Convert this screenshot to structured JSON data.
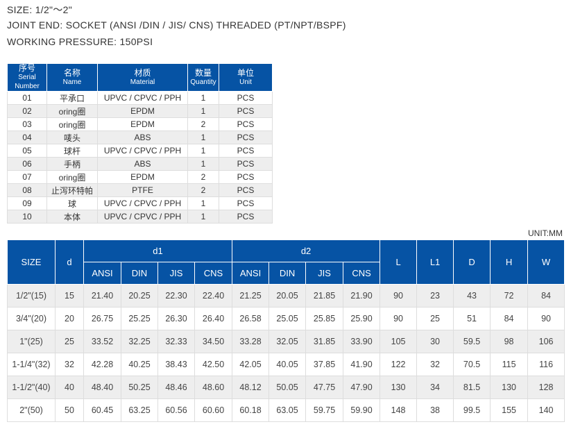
{
  "specs": {
    "size": "SIZE:  1/2\"～2\"",
    "joint_end": "JOINT END: SOCKET (ANSI /DIN / JIS/ CNS)  THREADED (PT/NPT/BSPF)",
    "pressure": "WORKING  PRESSURE: 150PSI"
  },
  "parts_table": {
    "headers": [
      {
        "zh": "序号",
        "en": "Serial Number"
      },
      {
        "zh": "名称",
        "en": "Name"
      },
      {
        "zh": "材质",
        "en": "Material"
      },
      {
        "zh": "数量",
        "en": "Quantity"
      },
      {
        "zh": "单位",
        "en": "Unit"
      }
    ],
    "rows": [
      [
        "01",
        "平承口",
        "UPVC / CPVC / PPH",
        "1",
        "PCS"
      ],
      [
        "02",
        "oring圈",
        "EPDM",
        "1",
        "PCS"
      ],
      [
        "03",
        "oring圈",
        "EPDM",
        "2",
        "PCS"
      ],
      [
        "04",
        "唛头",
        "ABS",
        "1",
        "PCS"
      ],
      [
        "05",
        "球杆",
        "UPVC / CPVC / PPH",
        "1",
        "PCS"
      ],
      [
        "06",
        "手柄",
        "ABS",
        "1",
        "PCS"
      ],
      [
        "07",
        "oring圈",
        "EPDM",
        "2",
        "PCS"
      ],
      [
        "08",
        "止泻环特帕",
        "PTFE",
        "2",
        "PCS"
      ],
      [
        "09",
        "球",
        "UPVC / CPVC / PPH",
        "1",
        "PCS"
      ],
      [
        "10",
        "本体",
        "UPVC / CPVC / PPH",
        "1",
        "PCS"
      ]
    ]
  },
  "dims_table": {
    "unit": "UNIT:MM",
    "headers": {
      "size": "SIZE",
      "d": "d",
      "d1": "d1",
      "d2": "d2",
      "sub": [
        "ANSI",
        "DIN",
        "JIS",
        "CNS"
      ],
      "L": "L",
      "L1": "L1",
      "D": "D",
      "H": "H",
      "W": "W"
    },
    "rows": [
      [
        "1/2\"(15)",
        "15",
        "21.40",
        "20.25",
        "22.30",
        "22.40",
        "21.25",
        "20.05",
        "21.85",
        "21.90",
        "90",
        "23",
        "43",
        "72",
        "84"
      ],
      [
        "3/4\"(20)",
        "20",
        "26.75",
        "25.25",
        "26.30",
        "26.40",
        "26.58",
        "25.05",
        "25.85",
        "25.90",
        "90",
        "25",
        "51",
        "84",
        "90"
      ],
      [
        "1\"(25)",
        "25",
        "33.52",
        "32.25",
        "32.33",
        "34.50",
        "33.28",
        "32.05",
        "31.85",
        "33.90",
        "105",
        "30",
        "59.5",
        "98",
        "106"
      ],
      [
        "1-1/4\"(32)",
        "32",
        "42.28",
        "40.25",
        "38.43",
        "42.50",
        "42.05",
        "40.05",
        "37.85",
        "41.90",
        "122",
        "32",
        "70.5",
        "115",
        "116"
      ],
      [
        "1-1/2\"(40)",
        "40",
        "48.40",
        "50.25",
        "48.46",
        "48.60",
        "48.12",
        "50.05",
        "47.75",
        "47.90",
        "130",
        "34",
        "81.5",
        "130",
        "128"
      ],
      [
        "2\"(50)",
        "50",
        "60.45",
        "63.25",
        "60.56",
        "60.60",
        "60.18",
        "63.05",
        "59.75",
        "59.90",
        "148",
        "38",
        "99.5",
        "155",
        "140"
      ]
    ]
  }
}
